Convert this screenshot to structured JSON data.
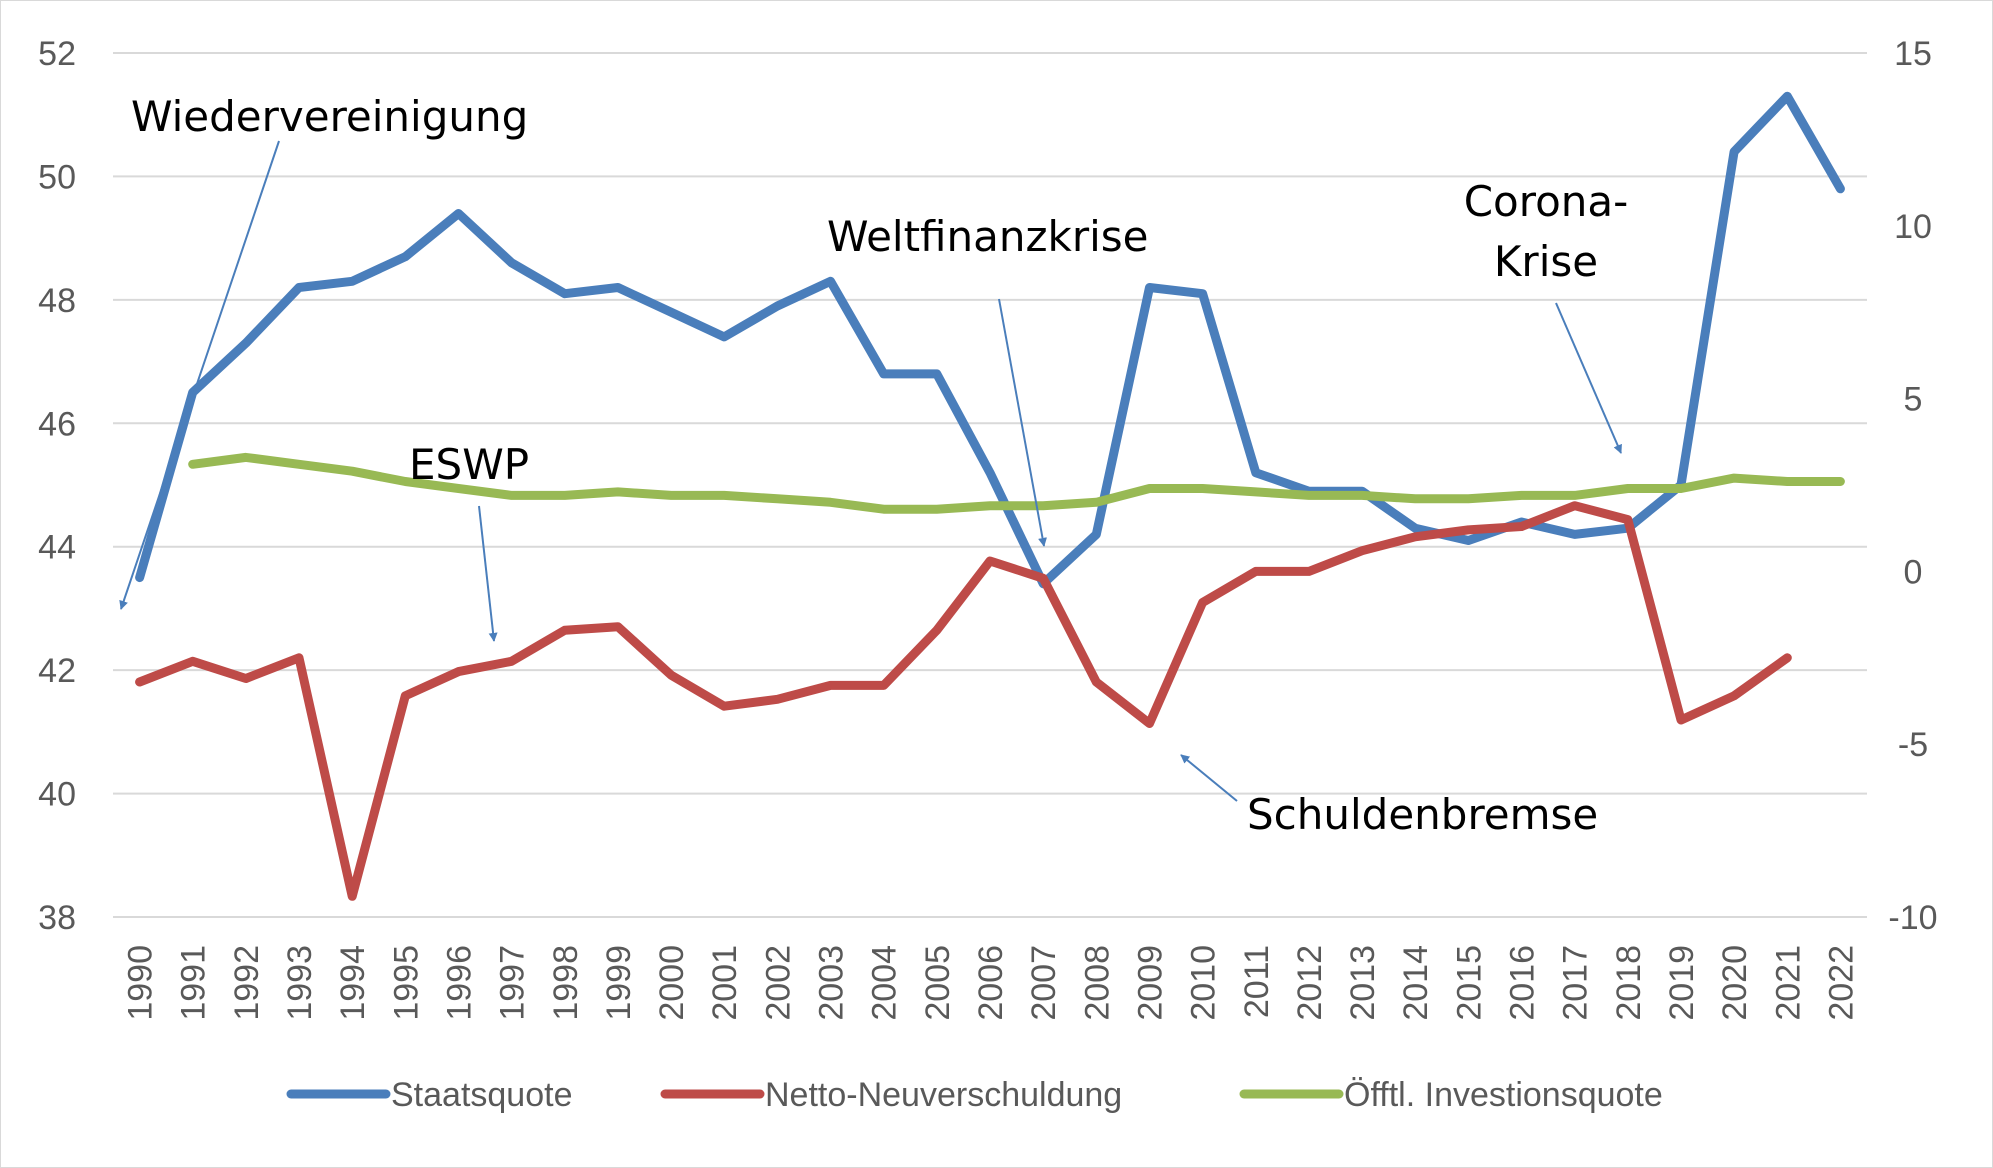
{
  "chart_data": {
    "type": "line",
    "x": [
      "1990",
      "1991",
      "1992",
      "1993",
      "1994",
      "1995",
      "1996",
      "1997",
      "1998",
      "1999",
      "2000",
      "2001",
      "2002",
      "2003",
      "2004",
      "2005",
      "2006",
      "2007",
      "2008",
      "2009",
      "2010",
      "2011",
      "2012",
      "2013",
      "2014",
      "2015",
      "2016",
      "2017",
      "2018",
      "2019",
      "2020",
      "2021",
      "2022"
    ],
    "y_left": {
      "range": [
        38,
        52
      ],
      "ticks": [
        "38",
        "40",
        "42",
        "44",
        "46",
        "48",
        "50",
        "52"
      ]
    },
    "y_right": {
      "range": [
        -10,
        15
      ],
      "ticks": [
        "-10",
        "-5",
        "0",
        "5",
        "10",
        "15"
      ]
    },
    "grid": true,
    "legend_position": "bottom",
    "series": [
      {
        "name": "Staatsquote",
        "axis": "left",
        "color": "#4a7ebb",
        "values": [
          43.5,
          46.5,
          47.3,
          48.2,
          48.3,
          48.7,
          49.4,
          48.6,
          48.1,
          48.2,
          47.8,
          47.4,
          47.9,
          48.3,
          46.8,
          46.8,
          45.2,
          43.4,
          44.2,
          48.2,
          48.1,
          45.2,
          44.9,
          44.9,
          44.3,
          44.1,
          44.4,
          44.2,
          44.3,
          45.0,
          50.4,
          51.3,
          49.8
        ]
      },
      {
        "name": "Netto-Neuverschuldung",
        "axis": "right",
        "color": "#be4b48",
        "values": [
          -3.2,
          -2.6,
          -3.1,
          -2.5,
          -9.4,
          -3.6,
          -2.9,
          -2.6,
          -1.7,
          -1.6,
          -3.0,
          -3.9,
          -3.7,
          -3.3,
          -3.3,
          -1.7,
          0.3,
          -0.2,
          -3.2,
          -4.4,
          -0.9,
          0.0,
          0.0,
          0.6,
          1.0,
          1.2,
          1.3,
          1.9,
          1.5,
          -4.3,
          -3.6,
          -2.5,
          null
        ]
      },
      {
        "name": "Öfftl. Investionsquote",
        "axis": "right",
        "color": "#98b954",
        "values": [
          null,
          3.1,
          3.3,
          3.1,
          2.9,
          2.6,
          2.4,
          2.2,
          2.2,
          2.3,
          2.2,
          2.2,
          2.1,
          2.0,
          1.8,
          1.8,
          1.9,
          1.9,
          2.0,
          2.4,
          2.4,
          2.3,
          2.2,
          2.2,
          2.1,
          2.1,
          2.2,
          2.2,
          2.4,
          2.4,
          2.7,
          2.6,
          2.6
        ]
      }
    ],
    "annotations": [
      {
        "text": "Wiedervereinigung"
      },
      {
        "text": "ESWP"
      },
      {
        "text": "Weltfinanzkrise"
      },
      {
        "text": "Corona-"
      },
      {
        "text": "Krise"
      },
      {
        "text": "Schuldenbremse"
      }
    ]
  }
}
